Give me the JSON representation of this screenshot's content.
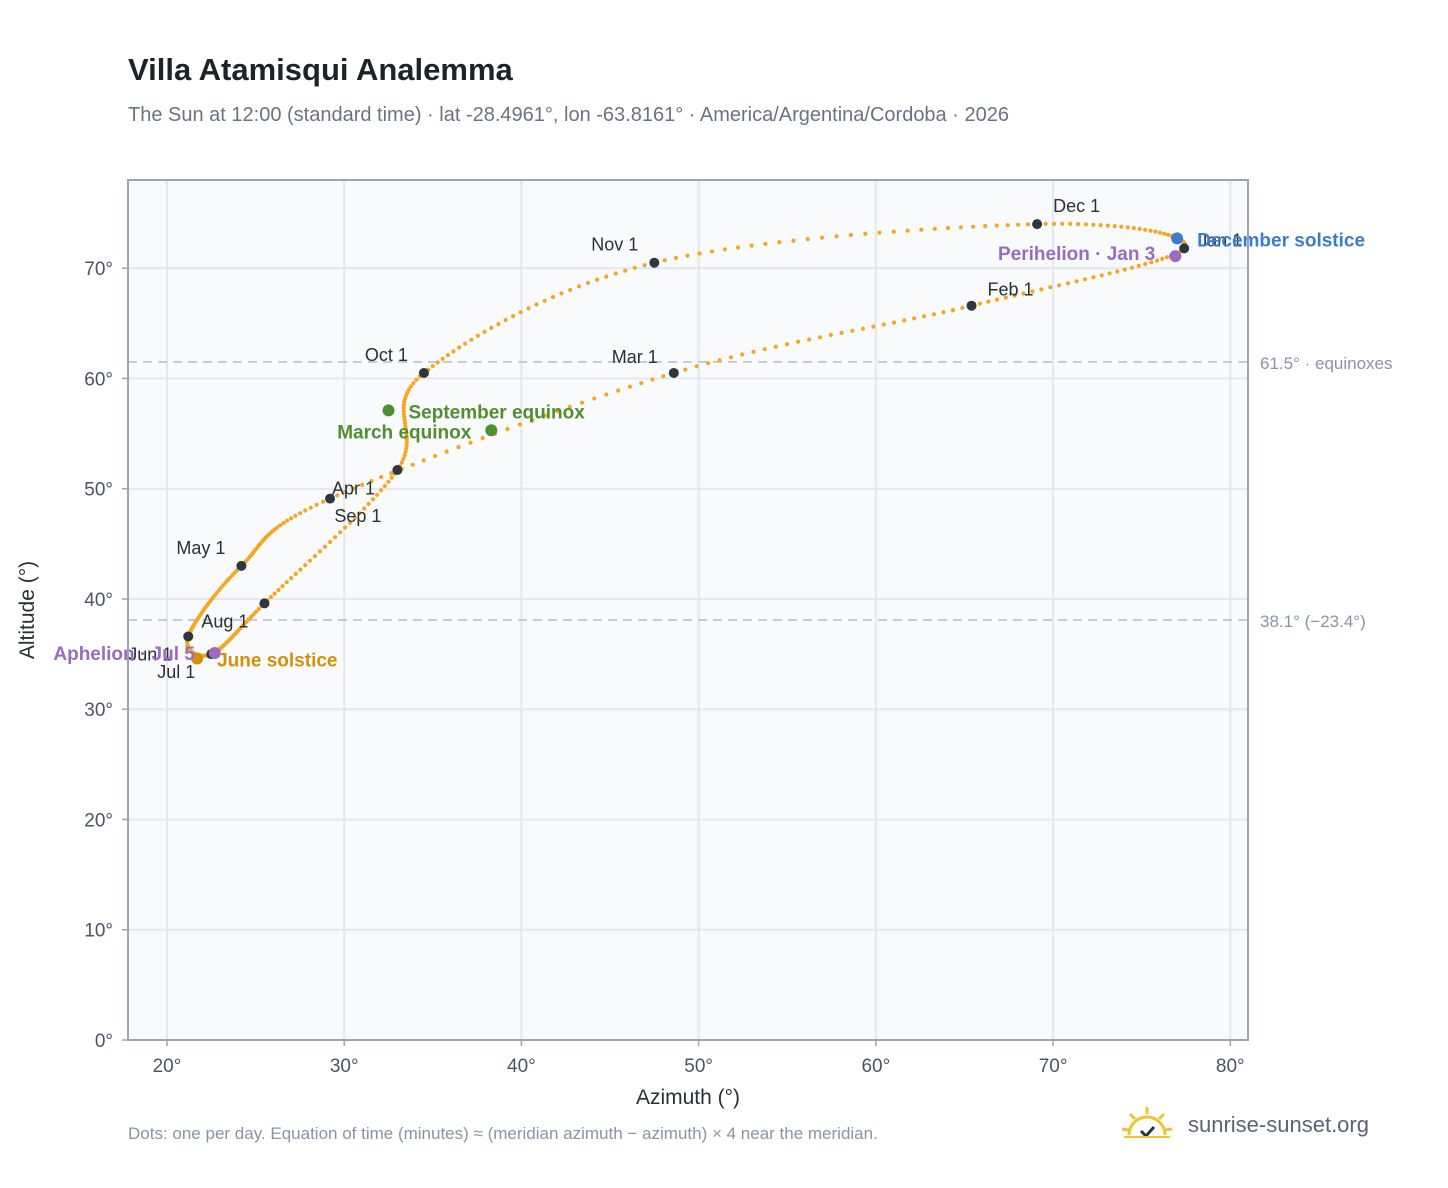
{
  "header": {
    "title": "Villa Atamisqui Analemma",
    "subtitle": "The Sun at 12:00 (standard time) · lat -28.4961°, lon -63.8161° · America/Argentina/Cordoba · 2026"
  },
  "footer": {
    "note": "Dots: one per day. Equation of time (minutes) ≈ (meridian azimuth − azimuth) × 4 near the meridian.",
    "brand": "sunrise-sunset.org",
    "brand_icon": "sun-logo-icon"
  },
  "colors": {
    "curve": "#f5a623",
    "month_marker": "#2f3640",
    "equinox": "#4f8f2f",
    "december_solstice": "#3d7cc9",
    "june_solstice": "#d4900a",
    "apsis": "#9b6bbf",
    "reference_line": "#b8c2cc",
    "plot_bg": "#f8fafc",
    "grid": "#e3e8ee",
    "frame": "#9aa5b1"
  },
  "chart_data": {
    "type": "scatter",
    "xlabel": "Azimuth (°)",
    "ylabel": "Altitude (°)",
    "xlim": [
      17.8,
      81.0
    ],
    "ylim": [
      0,
      78
    ],
    "x_ticks": [
      20,
      30,
      40,
      50,
      60,
      70,
      80
    ],
    "x_tick_labels": [
      "20°",
      "30°",
      "40°",
      "50°",
      "60°",
      "70°",
      "80°"
    ],
    "y_ticks": [
      0,
      10,
      20,
      30,
      40,
      50,
      60,
      70
    ],
    "y_tick_labels": [
      "0°",
      "10°",
      "20°",
      "30°",
      "40°",
      "50°",
      "60°",
      "70°"
    ],
    "grid": true,
    "reference_lines": [
      {
        "y": 61.5,
        "label": "61.5° · equinoxes"
      },
      {
        "y": 38.1,
        "label": "38.1° (−23.4°)"
      }
    ],
    "month_markers": [
      {
        "label": "Jan 1",
        "az": 77.4,
        "alt": 71.8
      },
      {
        "label": "Feb 1",
        "az": 65.4,
        "alt": 66.6
      },
      {
        "label": "Mar 1",
        "az": 48.6,
        "alt": 60.5
      },
      {
        "label": "Apr 1",
        "az": 29.2,
        "alt": 49.1
      },
      {
        "label": "May 1",
        "az": 24.2,
        "alt": 43.0
      },
      {
        "label": "Jun 1",
        "az": 21.2,
        "alt": 36.6
      },
      {
        "label": "Jul 1",
        "az": 22.5,
        "alt": 35.0
      },
      {
        "label": "Aug 1",
        "az": 25.5,
        "alt": 39.6
      },
      {
        "label": "Sep 1",
        "az": 33.0,
        "alt": 51.7
      },
      {
        "label": "Oct 1",
        "az": 34.5,
        "alt": 60.5
      },
      {
        "label": "Nov 1",
        "az": 47.5,
        "alt": 70.5
      },
      {
        "label": "Dec 1",
        "az": 69.1,
        "alt": 74.0
      }
    ],
    "events": [
      {
        "label": "December solstice",
        "az": 77.0,
        "alt": 72.7
      },
      {
        "label": "Perihelion · Jan 3",
        "az": 76.9,
        "alt": 71.1
      },
      {
        "label": "March equinox",
        "az": 38.3,
        "alt": 55.3
      },
      {
        "label": "September equinox",
        "az": 32.5,
        "alt": 57.1
      },
      {
        "label": "June solstice",
        "az": 21.7,
        "alt": 34.6
      },
      {
        "label": "Aphelion · Jul 5",
        "az": 22.7,
        "alt": 35.1
      }
    ]
  }
}
